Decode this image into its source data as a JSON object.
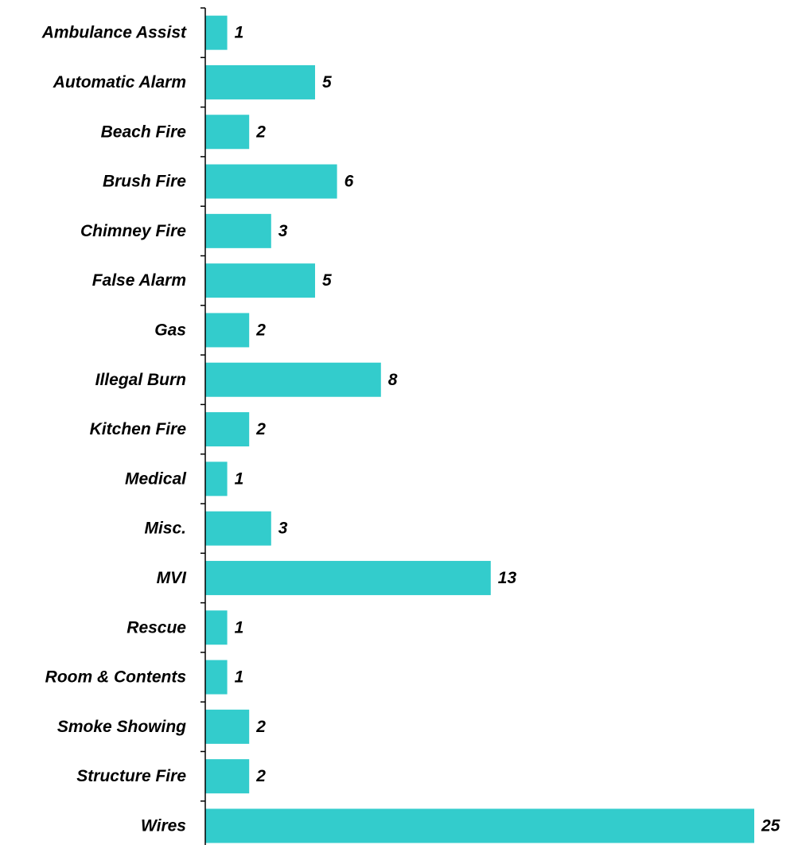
{
  "chart_data": {
    "type": "bar",
    "orientation": "horizontal",
    "categories": [
      "Ambulance Assist",
      "Automatic Alarm",
      "Beach Fire",
      "Brush Fire",
      "Chimney Fire",
      "False Alarm",
      "Gas",
      "Illegal Burn",
      "Kitchen Fire",
      "Medical",
      "Misc.",
      "MVI",
      "Rescue",
      "Room & Contents",
      "Smoke Showing",
      "Structure Fire",
      "Wires"
    ],
    "values": [
      1,
      5,
      2,
      6,
      3,
      5,
      2,
      8,
      2,
      1,
      3,
      13,
      1,
      1,
      2,
      2,
      25
    ],
    "xlim": [
      0,
      25
    ],
    "data_labels": true,
    "grid": false,
    "legend": "none",
    "bar_color": "#33CCCC",
    "axis_color": "#000000"
  }
}
